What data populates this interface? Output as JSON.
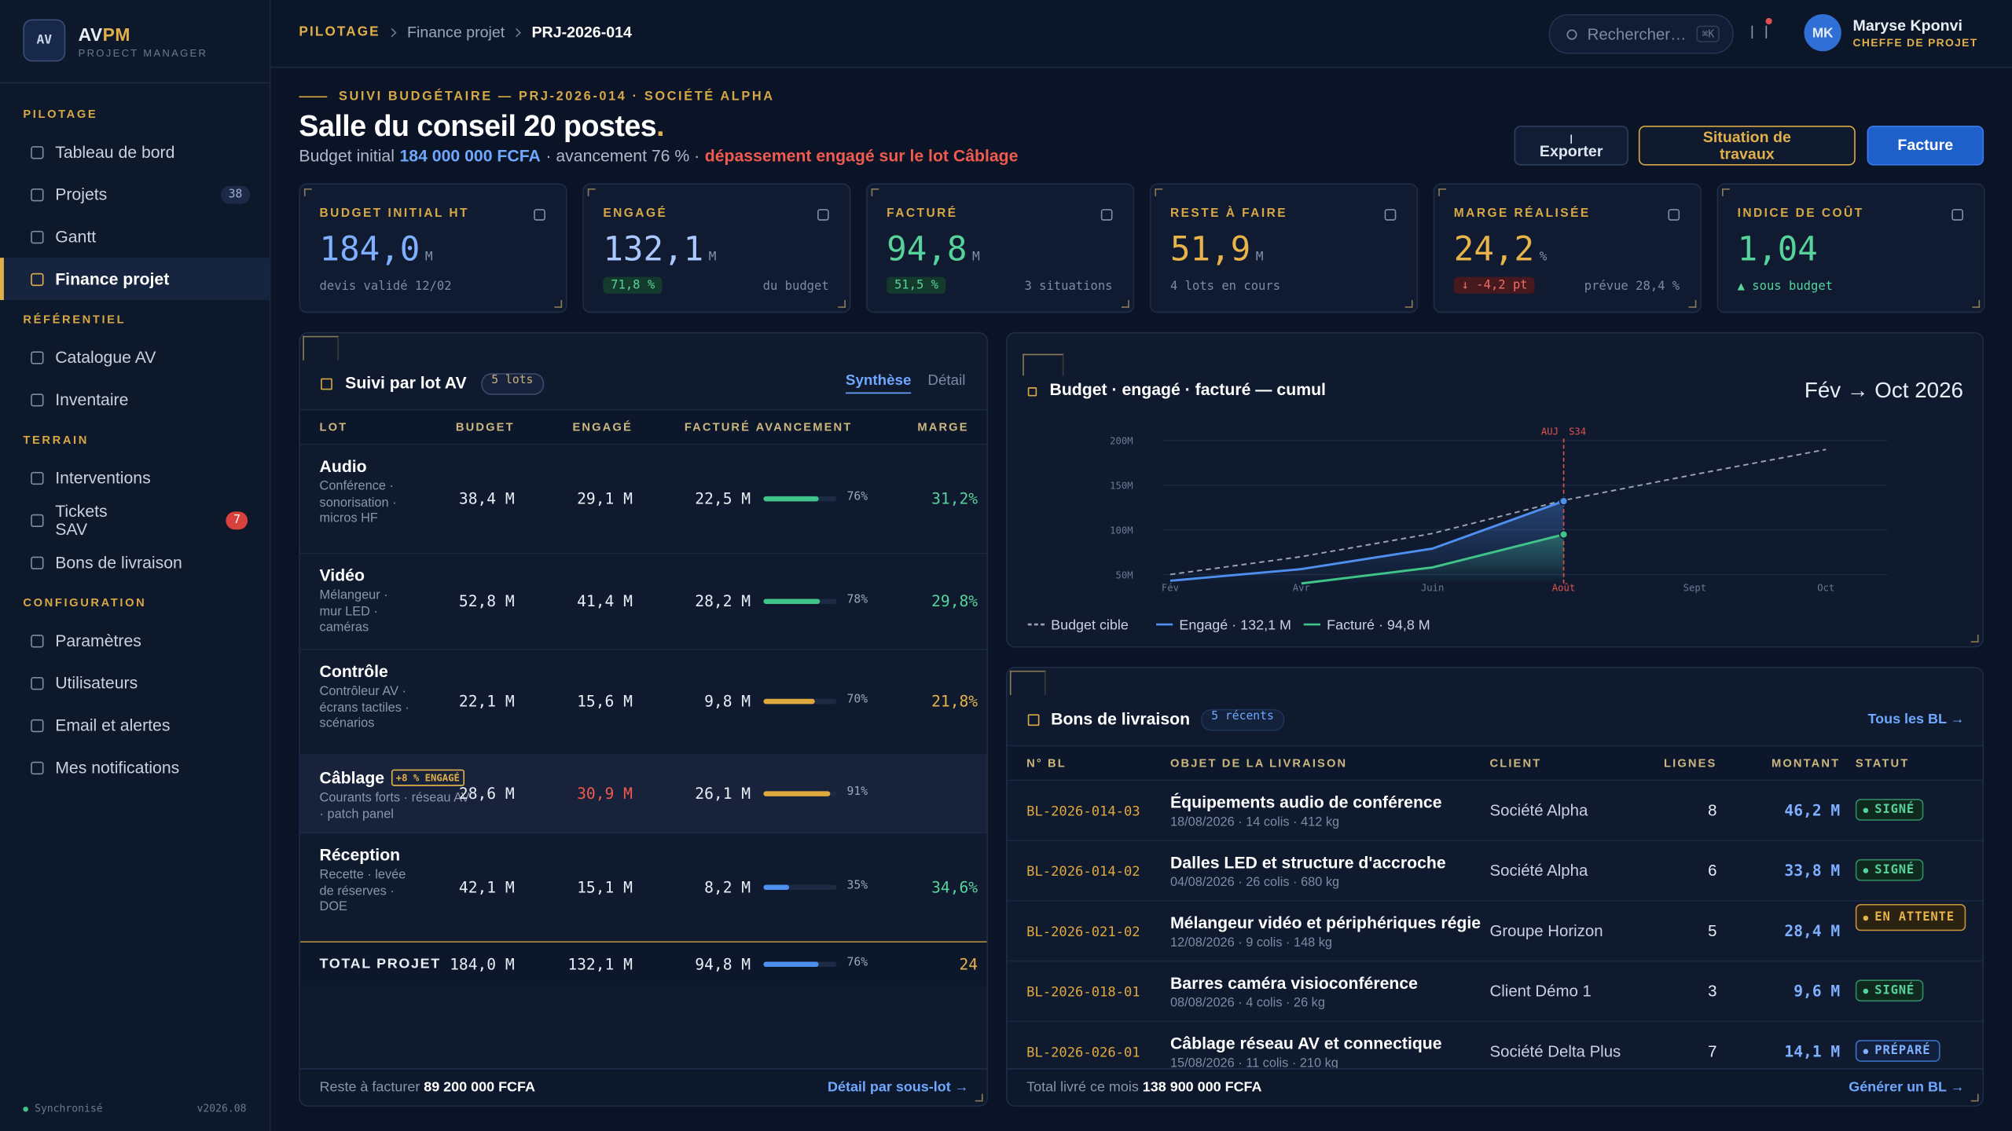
{
  "sidebar": {
    "logo": "AV",
    "brand": "AV",
    "brand_accent": "PM",
    "tagline": "PROJECT MANAGER",
    "sections": [
      {
        "title": "PILOTAGE",
        "items": [
          {
            "label": "Tableau de bord"
          },
          {
            "label": "Projets",
            "badge": "38"
          },
          {
            "label": "Gantt"
          },
          {
            "label": "Finance projet",
            "active": true
          }
        ]
      },
      {
        "title": "RÉFÉRENTIEL",
        "items": [
          {
            "label": "Catalogue AV"
          },
          {
            "label": "Inventaire"
          }
        ]
      },
      {
        "title": "TERRAIN",
        "items": [
          {
            "label": "Interventions"
          },
          {
            "label": "Tickets SAV",
            "badge": "7",
            "badge_tone": "alert"
          },
          {
            "label": "Bons de livraison"
          }
        ]
      },
      {
        "title": "CONFIGURATION",
        "items": [
          {
            "label": "Paramètres"
          },
          {
            "label": "Utilisateurs"
          },
          {
            "label": "Email et alertes"
          },
          {
            "label": "Mes notifications"
          }
        ]
      }
    ],
    "status": "Synchronisé",
    "version": "v2026.08"
  },
  "topbar": {
    "breadcrumb": [
      "PILOTAGE",
      "Finance projet",
      "PRJ-2026-014"
    ],
    "search_placeholder": "Rechercher…",
    "search_shortcut": "⌘K",
    "user": {
      "initials": "MK",
      "name": "Maryse Kponvi",
      "role": "CHEFFE DE PROJET"
    }
  },
  "header": {
    "eyebrow": "SUIVI BUDGÉTAIRE — PRJ-2026-014 · SOCIÉTÉ ALPHA",
    "title": "Salle du conseil 20 postes",
    "title_accent": ".",
    "subtitle": [
      {
        "text": "Budget initial",
        "tone": "plain"
      },
      {
        "text": "184 000 000 FCFA",
        "tone": "strong"
      },
      {
        "text": "· avancement 76 % ·",
        "tone": "plain"
      },
      {
        "text": "dépassement engagé sur le lot Câblage",
        "tone": "alert"
      }
    ],
    "buttons": [
      {
        "label": "Exporter",
        "tone": "ghost"
      },
      {
        "label": "Situation de travaux",
        "tone": "gold"
      },
      {
        "label": "Facture",
        "tone": "primary"
      }
    ]
  },
  "kpis": [
    {
      "label": "BUDGET INITIAL HT",
      "value": "184,0",
      "unit": "M",
      "note": "devis validé 12/02",
      "tone": "blue"
    },
    {
      "label": "ENGAGÉ",
      "value": "132,1",
      "unit": "M",
      "badge": "71,8 %",
      "badge_tone": "up",
      "note": "du budget",
      "tone": "sky"
    },
    {
      "label": "FACTURÉ",
      "value": "94,8",
      "unit": "M",
      "badge": "51,5 %",
      "badge_tone": "up",
      "note": "3 situations",
      "tone": "green"
    },
    {
      "label": "RESTE À FAIRE",
      "value": "51,9",
      "unit": "M",
      "note": "4 lots en cours",
      "tone": "gold"
    },
    {
      "label": "MARGE RÉALISÉE",
      "value": "24,2",
      "unit": "%",
      "badge": "↓ -4,2 pt",
      "badge_tone": "down",
      "note": "prévue 28,4 %",
      "tone": "gold"
    },
    {
      "label": "INDICE DE COÛT",
      "value": "1,04",
      "note": "▲ sous budget",
      "note_tone": "green",
      "tone": "green"
    }
  ],
  "lots": {
    "title": "Suivi par lot AV",
    "count": "5 lots",
    "tabs": [
      "Synthèse",
      "Détail"
    ],
    "columns": [
      "LOT",
      "BUDGET",
      "ENGAGÉ",
      "FACTURÉ",
      "AVANCEMENT",
      "MARGE"
    ],
    "rows": [
      {
        "name": "Audio",
        "description": "Conférence · sonorisation · micros HF",
        "budget": "38,4 M",
        "engaged": "29,1 M",
        "invoiced": "22,5 M",
        "progress": 76,
        "progress_label": "76%",
        "margin": "31,2%",
        "bar_color": "#3fc48a",
        "margin_tone": "green",
        "height": 85
      },
      {
        "name": "Vidéo",
        "description": "Mélangeur · mur LED · caméras",
        "budget": "52,8 M",
        "engaged": "41,4 M",
        "invoiced": "28,2 M",
        "progress": 78,
        "progress_label": "78%",
        "margin": "29,8%",
        "bar_color": "#3fc48a",
        "margin_tone": "green",
        "height": 75
      },
      {
        "name": "Contrôle",
        "description": "Contrôleur AV · écrans tactiles · scénarios",
        "budget": "22,1 M",
        "engaged": "15,6 M",
        "invoiced": "9,8 M",
        "progress": 70,
        "progress_label": "70%",
        "margin": "21,8%",
        "bar_color": "#e0a93e",
        "margin_tone": "gold",
        "height": 82
      },
      {
        "name": "Câblage",
        "tag": "+8 % ENGAGÉ",
        "description": "Courants forts · réseau AV · patch panel",
        "budget": "28,6 M",
        "engaged": "30,9 M",
        "engaged_tone": "alert",
        "invoiced": "26,1 M",
        "progress": 91,
        "progress_label": "91%",
        "bar_color": "#e0a93e",
        "highlight": true,
        "height": 61
      },
      {
        "name": "Réception",
        "description": "Recette · levée de réserves · DOE",
        "budget": "42,1 M",
        "engaged": "15,1 M",
        "invoiced": "8,2 M",
        "progress": 35,
        "progress_label": "35%",
        "margin": "34,6%",
        "bar_color": "#4f8ff0",
        "margin_tone": "green",
        "height": 85
      }
    ],
    "total": {
      "name": "TOTAL PROJET",
      "budget": "184,0 M",
      "engaged": "132,1 M",
      "invoiced": "94,8 M",
      "progress": 76,
      "progress_label": "76%",
      "margin": "24",
      "bar_color": "#4f8ff0",
      "margin_tone": "gold"
    },
    "footer": {
      "label": "Reste à facturer",
      "value": "89 200 000 FCFA",
      "link": "Détail par sous-lot →"
    }
  },
  "chart_data": {
    "type": "line",
    "title": "Budget · engagé · facturé — cumul",
    "subtitle": "Fév → Oct 2026",
    "categories": [
      "Fév",
      "Avr",
      "Juin",
      "Août",
      "Sept",
      "Oct"
    ],
    "series": [
      {
        "name": "Budget cible",
        "color": "#9aa3b5",
        "dash": true,
        "values": [
          50,
          70,
          96,
          133,
          162,
          190
        ]
      },
      {
        "name": "Engagé · 132,1 M",
        "color": "#4f8ff0",
        "area": true,
        "values": [
          43,
          56,
          79,
          132.1,
          null,
          null
        ]
      },
      {
        "name": "Facturé · 94,8 M",
        "color": "#3fc48a",
        "area": true,
        "values": [
          null,
          40,
          58,
          94.8,
          null,
          null
        ]
      }
    ],
    "ylim": [
      40,
      205
    ],
    "yticks": [
      {
        "value": 50,
        "label": "50M"
      },
      {
        "value": 100,
        "label": "100M"
      },
      {
        "value": 150,
        "label": "150M"
      },
      {
        "value": 200,
        "label": "200M"
      }
    ],
    "grid": true,
    "marker": {
      "label": "AUJ",
      "week": "S34",
      "at": "Août",
      "color": "#e0524f"
    }
  },
  "deliveries": {
    "title": "Bons de livraison",
    "count": "5 récents",
    "link": "Tous les BL →",
    "columns": [
      "N° BL",
      "OBJET DE LA LIVRAISON",
      "CLIENT",
      "LIGNES",
      "MONTANT",
      "STATUT"
    ],
    "rows": [
      {
        "id": "BL-2026-014-03",
        "object": "Équipements audio de conférence",
        "details": "18/08/2026 · 14 colis · 412 kg",
        "client": "Société Alpha",
        "lines": 8,
        "amount": "46,2 M",
        "status": "SIGNÉ",
        "status_tone": "signed"
      },
      {
        "id": "BL-2026-014-02",
        "object": "Dalles LED et structure d'accroche",
        "details": "04/08/2026 · 26 colis · 680 kg",
        "client": "Société Alpha",
        "lines": 6,
        "amount": "33,8 M",
        "status": "SIGNÉ",
        "status_tone": "signed"
      },
      {
        "id": "BL-2026-021-02",
        "object": "Mélangeur vidéo et périphériques régie",
        "details": "12/08/2026 · 9 colis · 148 kg",
        "client": "Groupe Horizon",
        "lines": 5,
        "amount": "28,4 M",
        "status": "EN ATTENTE",
        "status_tone": "pending"
      },
      {
        "id": "BL-2026-018-01",
        "object": "Barres caméra visioconférence",
        "details": "08/08/2026 · 4 colis · 26 kg",
        "client": "Client Démo 1",
        "lines": 3,
        "amount": "9,6 M",
        "status": "SIGNÉ",
        "status_tone": "signed"
      },
      {
        "id": "BL-2026-026-01",
        "object": "Câblage réseau AV et connectique",
        "details": "15/08/2026 · 11 colis · 210 kg",
        "client": "Société Delta Plus",
        "lines": 7,
        "amount": "14,1 M",
        "status": "PRÉPARÉ",
        "status_tone": "prepared"
      }
    ],
    "footer": {
      "label": "Total livré ce mois",
      "value": "138 900 000 FCFA",
      "link": "Générer un BL →"
    }
  }
}
